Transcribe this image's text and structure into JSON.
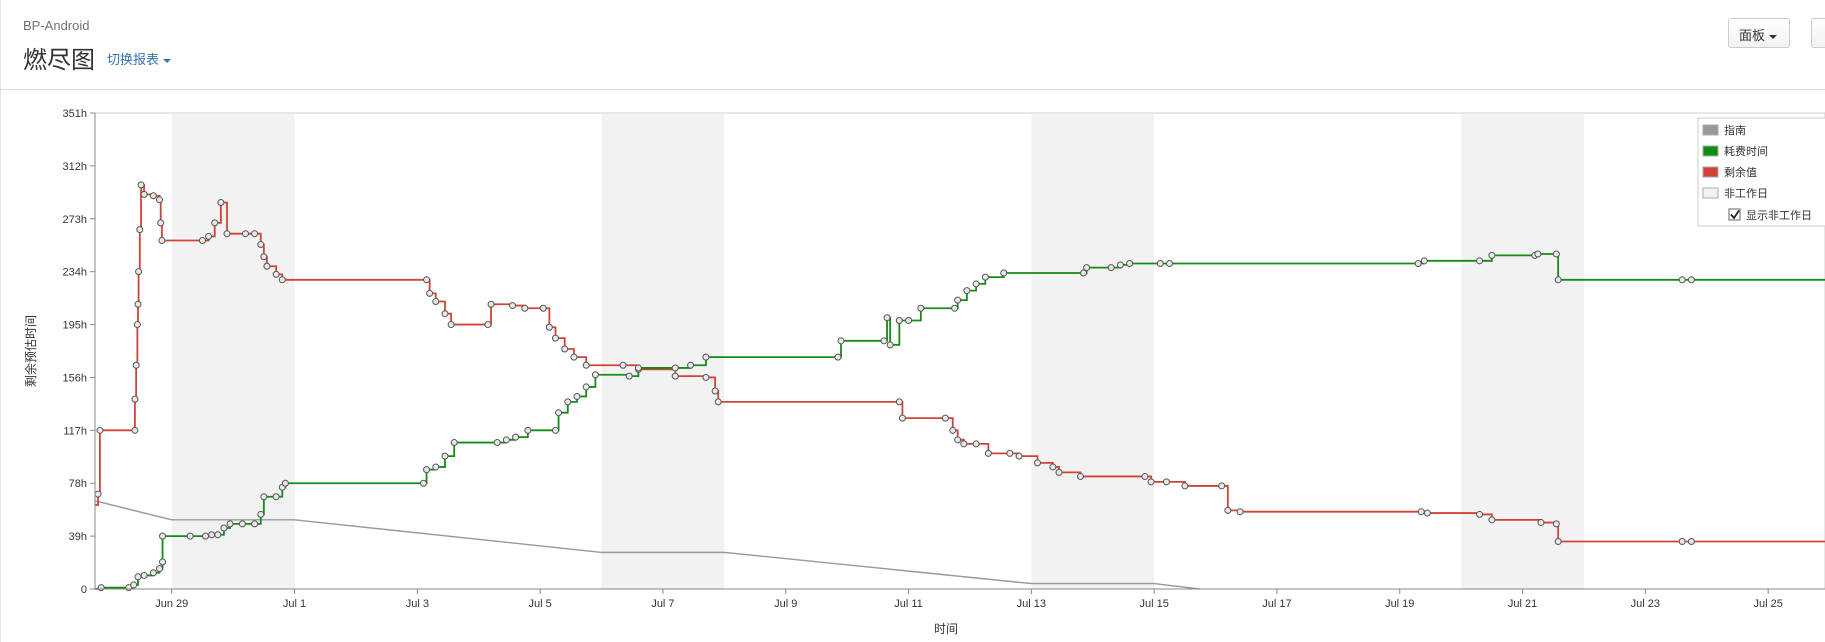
{
  "header": {
    "project": "BP-Android",
    "title": "燃尽图",
    "switch_label": "切换报表",
    "board_button": "面板"
  },
  "colors": {
    "guideline": "#999999",
    "spent": "#118d16",
    "remaining": "#d04437",
    "nonworking": "#f2f2f2"
  },
  "chart_data": {
    "type": "line",
    "xlabel": "时间",
    "ylabel": "剩余预估时间",
    "x_ticks": [
      "Jun 29",
      "Jul 1",
      "Jul 3",
      "Jul 5",
      "Jul 7",
      "Jul 9",
      "Jul 11",
      "Jul 13",
      "Jul 15",
      "Jul 17",
      "Jul 19",
      "Jul 21",
      "Jul 23",
      "Jul 25"
    ],
    "y_ticks": [
      "0",
      "39h",
      "78h",
      "117h",
      "156h",
      "195h",
      "234h",
      "273h",
      "312h",
      "351h"
    ],
    "x_range_days": [
      -1.25,
      27.4
    ],
    "ylim": [
      0,
      351
    ],
    "grid": false,
    "legend_placement": "top-right",
    "legend": [
      {
        "label": "指南",
        "color": "#999999"
      },
      {
        "label": "耗费时间",
        "color": "#118d16"
      },
      {
        "label": "剩余值",
        "color": "#d04437"
      },
      {
        "label": "非工作日",
        "color": "#f2f2f2"
      }
    ],
    "show_nonworking_label": "显示非工作日",
    "show_nonworking_checked": true,
    "nonworking_days": [
      [
        0,
        2
      ],
      [
        7,
        9
      ],
      [
        14,
        16
      ],
      [
        21,
        23
      ]
    ],
    "series": [
      {
        "name": "指南",
        "step": false,
        "points": [
          [
            -1.25,
            65
          ],
          [
            0,
            51
          ],
          [
            2,
            51
          ],
          [
            7,
            27
          ],
          [
            9,
            27
          ],
          [
            14,
            4
          ],
          [
            16,
            4
          ],
          [
            16.74,
            0
          ]
        ]
      },
      {
        "name": "剩余值",
        "step": true,
        "points": [
          [
            -1.25,
            62
          ],
          [
            -1.2,
            70
          ],
          [
            -1.17,
            117
          ],
          [
            -0.6,
            117
          ],
          [
            -0.6,
            140
          ],
          [
            -0.58,
            165
          ],
          [
            -0.56,
            195
          ],
          [
            -0.55,
            210
          ],
          [
            -0.54,
            234
          ],
          [
            -0.52,
            265
          ],
          [
            -0.5,
            298
          ],
          [
            -0.45,
            291
          ],
          [
            -0.3,
            290
          ],
          [
            -0.2,
            287
          ],
          [
            -0.18,
            270
          ],
          [
            -0.16,
            257
          ],
          [
            0.5,
            257
          ],
          [
            0.6,
            260
          ],
          [
            0.7,
            270
          ],
          [
            0.8,
            285
          ],
          [
            0.9,
            262
          ],
          [
            1.2,
            262
          ],
          [
            1.35,
            262
          ],
          [
            1.45,
            254
          ],
          [
            1.5,
            245
          ],
          [
            1.55,
            238
          ],
          [
            1.7,
            232
          ],
          [
            1.8,
            228
          ],
          [
            4.15,
            228
          ],
          [
            4.2,
            218
          ],
          [
            4.3,
            212
          ],
          [
            4.45,
            203
          ],
          [
            4.55,
            195
          ],
          [
            5.15,
            195
          ],
          [
            5.2,
            210
          ],
          [
            5.55,
            209
          ],
          [
            5.75,
            207
          ],
          [
            6.05,
            207
          ],
          [
            6.15,
            193
          ],
          [
            6.25,
            185
          ],
          [
            6.4,
            177
          ],
          [
            6.55,
            171
          ],
          [
            6.75,
            165
          ],
          [
            7.35,
            165
          ],
          [
            7.6,
            162
          ],
          [
            8.2,
            157
          ],
          [
            8.7,
            156
          ],
          [
            8.85,
            146
          ],
          [
            8.9,
            138
          ],
          [
            11.85,
            138
          ],
          [
            11.9,
            126
          ],
          [
            12.6,
            126
          ],
          [
            12.72,
            117
          ],
          [
            12.8,
            110
          ],
          [
            12.9,
            107
          ],
          [
            13.1,
            107
          ],
          [
            13.3,
            100
          ],
          [
            13.65,
            100
          ],
          [
            13.8,
            98
          ],
          [
            14.1,
            93
          ],
          [
            14.35,
            90
          ],
          [
            14.45,
            86
          ],
          [
            14.8,
            83
          ],
          [
            15.85,
            83
          ],
          [
            15.95,
            79
          ],
          [
            16.2,
            79
          ],
          [
            16.5,
            76
          ],
          [
            17.1,
            76
          ],
          [
            17.2,
            58
          ],
          [
            17.4,
            57
          ],
          [
            20.35,
            57
          ],
          [
            20.45,
            56
          ],
          [
            21.3,
            55
          ],
          [
            21.5,
            51
          ],
          [
            22.3,
            49
          ],
          [
            22.55,
            48
          ],
          [
            22.58,
            35
          ],
          [
            24.6,
            35
          ],
          [
            24.75,
            35
          ],
          [
            27.4,
            35
          ]
        ]
      },
      {
        "name": "耗费时间",
        "step": true,
        "points": [
          [
            -1.25,
            0
          ],
          [
            -1.15,
            1
          ],
          [
            -0.7,
            1
          ],
          [
            -0.62,
            3
          ],
          [
            -0.55,
            9
          ],
          [
            -0.45,
            10
          ],
          [
            -0.3,
            12
          ],
          [
            -0.2,
            15
          ],
          [
            -0.15,
            20
          ],
          [
            -0.15,
            39
          ],
          [
            0.3,
            39
          ],
          [
            0.55,
            39
          ],
          [
            0.65,
            40
          ],
          [
            0.75,
            40
          ],
          [
            0.85,
            45
          ],
          [
            0.95,
            48
          ],
          [
            1.15,
            48
          ],
          [
            1.35,
            48
          ],
          [
            1.45,
            55
          ],
          [
            1.5,
            68
          ],
          [
            1.7,
            68
          ],
          [
            1.8,
            75
          ],
          [
            1.85,
            78
          ],
          [
            4.1,
            78
          ],
          [
            4.15,
            88
          ],
          [
            4.3,
            90
          ],
          [
            4.45,
            98
          ],
          [
            4.6,
            108
          ],
          [
            5.3,
            108
          ],
          [
            5.45,
            110
          ],
          [
            5.6,
            112
          ],
          [
            5.8,
            117
          ],
          [
            6.25,
            117
          ],
          [
            6.3,
            130
          ],
          [
            6.45,
            138
          ],
          [
            6.6,
            142
          ],
          [
            6.75,
            149
          ],
          [
            6.9,
            158
          ],
          [
            7.45,
            157
          ],
          [
            7.6,
            163
          ],
          [
            8.2,
            163
          ],
          [
            8.45,
            165
          ],
          [
            8.7,
            171
          ],
          [
            10.85,
            171
          ],
          [
            10.9,
            183
          ],
          [
            11.6,
            183
          ],
          [
            11.65,
            200
          ],
          [
            11.7,
            180
          ],
          [
            11.85,
            198
          ],
          [
            12.0,
            198
          ],
          [
            12.2,
            207
          ],
          [
            12.75,
            207
          ],
          [
            12.8,
            213
          ],
          [
            12.95,
            220
          ],
          [
            13.1,
            225
          ],
          [
            13.25,
            230
          ],
          [
            13.55,
            233
          ],
          [
            14.85,
            233
          ],
          [
            14.9,
            237
          ],
          [
            15.3,
            237
          ],
          [
            15.45,
            239
          ],
          [
            15.6,
            240
          ],
          [
            16.1,
            240
          ],
          [
            16.25,
            240
          ],
          [
            20.3,
            240
          ],
          [
            20.4,
            242
          ],
          [
            21.3,
            242
          ],
          [
            21.5,
            246
          ],
          [
            22.2,
            246
          ],
          [
            22.25,
            247
          ],
          [
            22.55,
            247
          ],
          [
            22.58,
            228
          ],
          [
            24.6,
            228
          ],
          [
            24.75,
            228
          ],
          [
            27.4,
            228
          ]
        ]
      }
    ]
  }
}
